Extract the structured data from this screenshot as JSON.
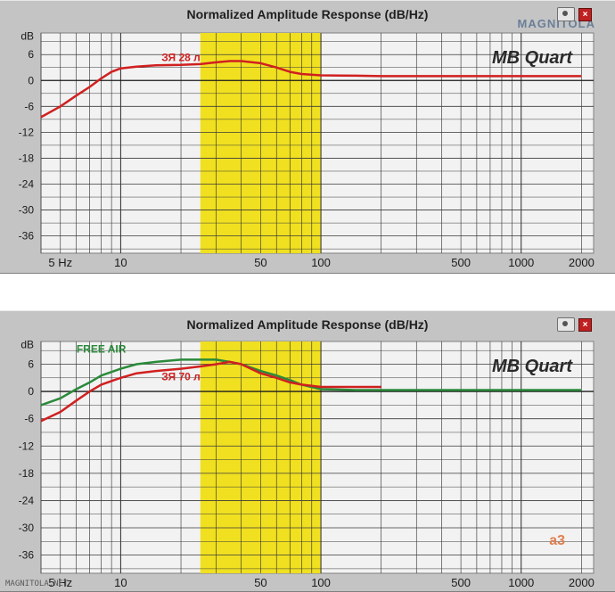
{
  "watermark": {
    "logo_text": "MAGNITOLA"
  },
  "footer_text": "MAGNITOLA.NET",
  "chart_data": [
    {
      "type": "line",
      "title": "Normalized Amplitude Response (dB/Hz)",
      "brand": "MB Quart",
      "xscale": "log",
      "xlim": [
        4,
        2300
      ],
      "ylim": [
        -40,
        11
      ],
      "ylabel": "dB",
      "y_ticks": [
        6,
        0,
        -6,
        -12,
        -18,
        -24,
        -30,
        -36
      ],
      "x_ticks": [
        {
          "value": 5,
          "label": "5 Hz"
        },
        {
          "value": 10,
          "label": "10"
        },
        {
          "value": 50,
          "label": "50"
        },
        {
          "value": 100,
          "label": "100"
        },
        {
          "value": 500,
          "label": "500"
        },
        {
          "value": 1000,
          "label": "1000"
        },
        {
          "value": 2000,
          "label": "2000"
        }
      ],
      "highlight_band": {
        "from": 25,
        "to": 100,
        "color": "#f0e020"
      },
      "grid": true,
      "series": [
        {
          "name": "ЗЯ 28 л",
          "color": "#d02020",
          "x": [
            4,
            5,
            6,
            7,
            8,
            9,
            10,
            12,
            15,
            20,
            25,
            30,
            35,
            40,
            50,
            60,
            70,
            80,
            100,
            150,
            200,
            300,
            500,
            1000,
            2000
          ],
          "y": [
            -8.5,
            -6,
            -3.5,
            -1.5,
            0.5,
            2,
            2.8,
            3.2,
            3.5,
            3.6,
            3.8,
            4.2,
            4.5,
            4.5,
            4,
            3,
            2,
            1.5,
            1.2,
            1.1,
            1,
            1,
            1,
            1,
            1
          ]
        }
      ],
      "annotations": [
        {
          "text": "ЗЯ 28 л",
          "x": 20,
          "y": 4.5
        }
      ]
    },
    {
      "type": "line",
      "title": "Normalized Amplitude Response (dB/Hz)",
      "brand": "MB Quart",
      "xscale": "log",
      "xlim": [
        4,
        2300
      ],
      "ylim": [
        -40,
        11
      ],
      "ylabel": "dB",
      "y_ticks": [
        6,
        0,
        -6,
        -12,
        -18,
        -24,
        -30,
        -36
      ],
      "x_ticks": [
        {
          "value": 5,
          "label": "5 Hz"
        },
        {
          "value": 10,
          "label": "10"
        },
        {
          "value": 50,
          "label": "50"
        },
        {
          "value": 100,
          "label": "100"
        },
        {
          "value": 500,
          "label": "500"
        },
        {
          "value": 1000,
          "label": "1000"
        },
        {
          "value": 2000,
          "label": "2000"
        }
      ],
      "highlight_band": {
        "from": 25,
        "to": 100,
        "color": "#f0e020"
      },
      "grid": true,
      "corner_label": "a3",
      "series": [
        {
          "name": "FREE AIR",
          "color": "#2a8a3a",
          "x": [
            4,
            5,
            6,
            7,
            8,
            10,
            12,
            15,
            20,
            25,
            30,
            35,
            40,
            50,
            60,
            70,
            80,
            100,
            150,
            200,
            300,
            500,
            1000,
            2000
          ],
          "y": [
            -3,
            -1.5,
            0.5,
            2,
            3.5,
            5,
            6,
            6.5,
            7,
            7,
            7,
            6.5,
            6,
            4.5,
            3.5,
            2.5,
            1.5,
            0.5,
            0.3,
            0.3,
            0.3,
            0.3,
            0.3,
            0.3
          ]
        },
        {
          "name": "ЗЯ 70 л",
          "color": "#d02020",
          "x": [
            4,
            5,
            6,
            7,
            8,
            10,
            12,
            15,
            20,
            25,
            30,
            35,
            40,
            50,
            60,
            70,
            80,
            100,
            150,
            200
          ],
          "y": [
            -6.5,
            -4.5,
            -2,
            0,
            1.5,
            3,
            4,
            4.5,
            5,
            5.5,
            6,
            6.5,
            6,
            4,
            3,
            2,
            1.5,
            1,
            1,
            1
          ]
        }
      ],
      "annotations": [
        {
          "text": "FREE AIR",
          "x": 8,
          "y": 8.5
        },
        {
          "text": "ЗЯ 70 л",
          "x": 20,
          "y": 2.5
        }
      ]
    }
  ]
}
